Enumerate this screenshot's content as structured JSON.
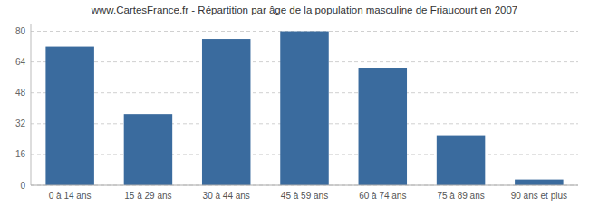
{
  "chart_data": {
    "type": "bar",
    "title": "www.CartesFrance.fr - Répartition par âge de la population masculine de Friaucourt en 2007",
    "categories": [
      "0 à 14 ans",
      "15 à 29 ans",
      "30 à 44 ans",
      "45 à 59 ans",
      "60 à 74 ans",
      "75 à 89 ans",
      "90 ans et plus"
    ],
    "values": [
      72,
      37,
      76,
      80,
      61,
      26,
      3
    ],
    "color": "#3a6b9e",
    "ylim": [
      0,
      84
    ],
    "yticks": [
      0,
      16,
      32,
      48,
      64,
      80
    ],
    "grid": true
  }
}
